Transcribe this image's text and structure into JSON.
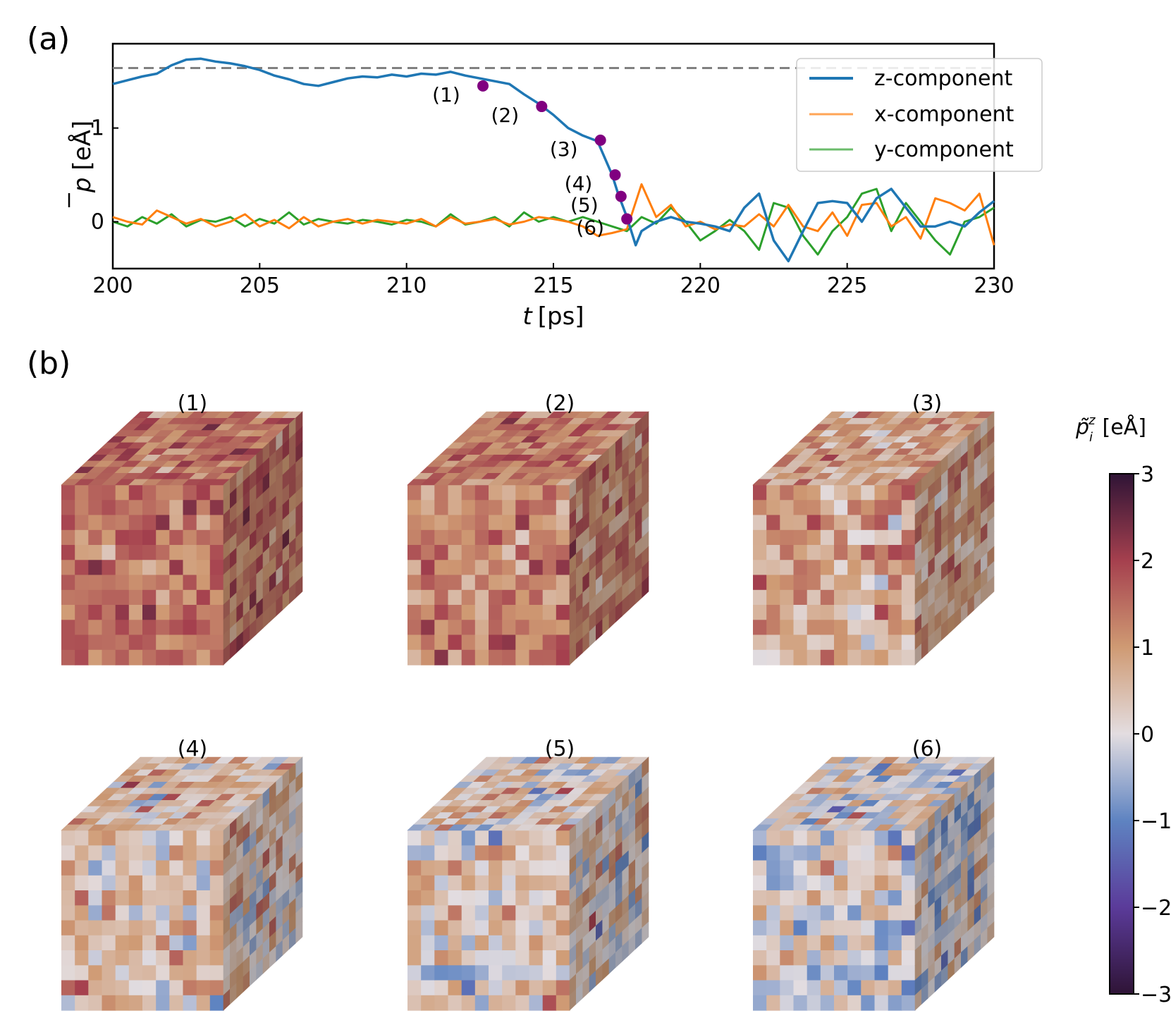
{
  "panel_a_label": "(a)",
  "panel_b_label": "(b)",
  "chart_data": [
    {
      "type": "line",
      "xlabel_italic": "t",
      "xlabel_unit": "[ps]",
      "ylabel_symbol": "p",
      "ylabel_unit": "[eÅ]",
      "xlim": [
        200,
        230
      ],
      "ylim": [
        -0.5,
        1.9
      ],
      "xticks": [
        200,
        205,
        210,
        215,
        220,
        225,
        230
      ],
      "yticks": [
        0,
        1
      ],
      "reference_line": {
        "y": 1.64,
        "style": "dashed",
        "color": "#808080"
      },
      "legend_position": "top-right",
      "series": [
        {
          "name": "z-component",
          "color": "#1f77b4",
          "x": [
            200,
            200.5,
            201,
            201.5,
            202,
            202.5,
            203,
            203.5,
            204,
            204.5,
            205,
            205.5,
            206,
            206.5,
            207,
            207.5,
            208,
            208.5,
            209,
            209.5,
            210,
            210.5,
            211,
            211.5,
            212,
            212.5,
            213,
            213.5,
            214,
            214.5,
            215,
            215.5,
            216,
            216.5,
            217,
            217.2,
            217.5,
            217.8,
            218,
            218.5,
            219,
            219.5,
            220,
            220.5,
            221,
            221.5,
            222,
            222.5,
            223,
            223.5,
            224,
            224.5,
            225,
            225.5,
            226,
            226.5,
            227,
            227.5,
            228,
            228.5,
            229,
            229.5,
            230
          ],
          "values": [
            1.47,
            1.51,
            1.55,
            1.58,
            1.67,
            1.73,
            1.74,
            1.71,
            1.69,
            1.66,
            1.62,
            1.56,
            1.52,
            1.47,
            1.45,
            1.49,
            1.53,
            1.55,
            1.54,
            1.57,
            1.55,
            1.58,
            1.57,
            1.6,
            1.56,
            1.53,
            1.5,
            1.47,
            1.36,
            1.26,
            1.14,
            1.0,
            0.92,
            0.86,
            0.5,
            0.3,
            0.05,
            -0.25,
            -0.1,
            0.0,
            0.05,
            0.0,
            -0.02,
            -0.05,
            -0.1,
            0.15,
            0.3,
            -0.2,
            -0.42,
            -0.1,
            0.2,
            0.22,
            0.2,
            0.0,
            0.25,
            0.35,
            0.15,
            -0.05,
            -0.05,
            0.0,
            -0.05,
            0.1,
            0.22
          ]
        },
        {
          "name": "x-component",
          "color": "#ff7f0e",
          "x": [
            200,
            200.5,
            201,
            201.5,
            202,
            202.5,
            203,
            203.5,
            204,
            204.5,
            205,
            205.5,
            206,
            206.5,
            207,
            207.5,
            208,
            208.5,
            209,
            209.5,
            210,
            210.5,
            211,
            211.5,
            212,
            212.5,
            213,
            213.5,
            214,
            214.5,
            215,
            215.5,
            216,
            216.5,
            217,
            217.5,
            218,
            218.5,
            219,
            219.5,
            220,
            220.5,
            221,
            221.5,
            222,
            222.5,
            223,
            223.5,
            224,
            224.5,
            225,
            225.5,
            226,
            226.5,
            227,
            227.5,
            228,
            228.5,
            229,
            229.5,
            230
          ],
          "values": [
            0.05,
            0.0,
            -0.03,
            0.12,
            0.05,
            -0.02,
            0.03,
            -0.05,
            0.0,
            0.08,
            -0.05,
            0.02,
            -0.07,
            0.05,
            -0.05,
            0.0,
            0.03,
            -0.02,
            0.02,
            0.0,
            -0.02,
            0.03,
            -0.05,
            0.05,
            -0.02,
            0.0,
            0.03,
            -0.03,
            0.0,
            0.05,
            0.03,
            0.0,
            -0.05,
            -0.15,
            -0.12,
            -0.08,
            0.4,
            0.05,
            0.18,
            -0.05,
            0.0,
            -0.08,
            -0.03,
            -0.05,
            0.08,
            -0.05,
            0.18,
            -0.05,
            -0.1,
            0.1,
            -0.15,
            0.18,
            0.2,
            -0.05,
            0.05,
            -0.18,
            0.25,
            0.2,
            0.12,
            0.3,
            -0.25
          ]
        },
        {
          "name": "y-component",
          "color": "#2ca02c",
          "x": [
            200,
            200.5,
            201,
            201.5,
            202,
            202.5,
            203,
            203.5,
            204,
            204.5,
            205,
            205.5,
            206,
            206.5,
            207,
            207.5,
            208,
            208.5,
            209,
            209.5,
            210,
            210.5,
            211,
            211.5,
            212,
            212.5,
            213,
            213.5,
            214,
            214.5,
            215,
            215.5,
            216,
            216.5,
            217,
            217.5,
            218,
            218.5,
            219,
            219.5,
            220,
            220.5,
            221,
            221.5,
            222,
            222.5,
            223,
            223.5,
            224,
            224.5,
            225,
            225.5,
            226,
            226.5,
            227,
            227.5,
            228,
            228.5,
            229,
            229.5,
            230
          ],
          "values": [
            0.0,
            -0.05,
            0.05,
            -0.02,
            0.08,
            -0.05,
            0.02,
            0.0,
            0.05,
            -0.05,
            0.03,
            -0.02,
            0.1,
            -0.03,
            0.03,
            0.0,
            -0.02,
            0.02,
            0.0,
            -0.03,
            0.02,
            0.0,
            -0.05,
            0.08,
            -0.03,
            0.0,
            0.05,
            -0.05,
            0.1,
            0.0,
            0.05,
            0.0,
            0.05,
            0.0,
            -0.05,
            -0.1,
            0.05,
            -0.02,
            0.15,
            0.0,
            -0.2,
            -0.1,
            0.02,
            -0.1,
            -0.3,
            0.2,
            0.15,
            -0.15,
            -0.35,
            -0.1,
            0.05,
            0.3,
            0.35,
            -0.1,
            0.2,
            0.0,
            -0.2,
            -0.35,
            0.0,
            0.05,
            0.15
          ]
        }
      ],
      "markers": {
        "color": "#800080",
        "x": [
          212.6,
          214.6,
          216.6,
          217.1,
          217.3,
          217.5
        ],
        "y": [
          1.45,
          1.23,
          0.87,
          0.5,
          0.27,
          0.03
        ],
        "labels": [
          "(1)",
          "(2)",
          "(3)",
          "(4)",
          "(5)",
          "(6)"
        ]
      }
    },
    {
      "type": "heatmap",
      "panel": "(b)",
      "cube_titles": [
        "(1)",
        "(2)",
        "(3)",
        "(4)",
        "(5)",
        "(6)"
      ],
      "mean_polarization_per_cube": [
        1.45,
        1.23,
        0.87,
        0.5,
        0.27,
        0.03
      ],
      "grid_cells_per_edge": 12,
      "colorbar": {
        "label_symbol": "p̃",
        "label_sub": "i",
        "label_sup": "z",
        "label_unit": "[eÅ]",
        "range": [
          -3,
          3
        ],
        "ticks": [
          "3",
          "2",
          "1",
          "0",
          "−1",
          "−2",
          "−3"
        ],
        "tick_values": [
          3,
          2,
          1,
          0,
          -1,
          -2,
          -3
        ],
        "colormap_stops": [
          {
            "value": -3,
            "color": "#2f1436"
          },
          {
            "value": -2,
            "color": "#5b3b9a"
          },
          {
            "value": -1,
            "color": "#5e83c1"
          },
          {
            "value": 0,
            "color": "#e3dde0"
          },
          {
            "value": 1,
            "color": "#cf9a73"
          },
          {
            "value": 2,
            "color": "#a5404e"
          },
          {
            "value": 3,
            "color": "#2f1436"
          }
        ]
      }
    }
  ]
}
